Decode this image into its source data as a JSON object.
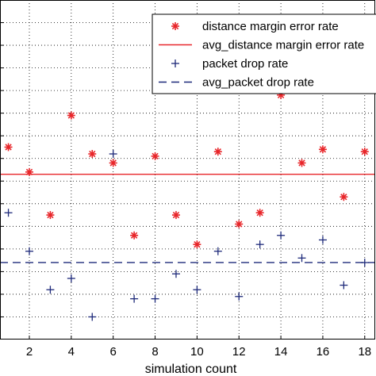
{
  "chart_data": {
    "type": "scatter",
    "title": "",
    "xlabel": "simulation count",
    "ylabel": "",
    "xlim": [
      0.6,
      18.5
    ],
    "ylim": [
      0,
      15
    ],
    "xticks": [
      2,
      4,
      6,
      8,
      10,
      12,
      14,
      16,
      18
    ],
    "grid": true,
    "legend_position": "top-right",
    "series": [
      {
        "name": "distance margin error rate",
        "marker": "asterisk",
        "color": "#e8262a",
        "x": [
          1,
          2,
          3,
          4,
          5,
          6,
          7,
          8,
          9,
          10,
          11,
          12,
          13,
          14,
          15,
          16,
          17,
          18
        ],
        "y": [
          8.5,
          7.4,
          5.5,
          9.9,
          8.2,
          7.8,
          4.6,
          8.1,
          5.5,
          4.2,
          8.3,
          5.1,
          5.6,
          10.8,
          7.8,
          8.4,
          6.3,
          8.3
        ]
      },
      {
        "name": "avg_distance margin error rate",
        "line": "solid",
        "color": "#e8262a",
        "y": 7.3
      },
      {
        "name": "packet drop rate",
        "marker": "plus",
        "color": "#1e2a7a",
        "x": [
          1,
          2,
          3,
          4,
          5,
          6,
          7,
          8,
          9,
          10,
          11,
          12,
          13,
          14,
          15,
          16,
          17,
          18
        ],
        "y": [
          5.6,
          3.9,
          2.2,
          2.7,
          1.0,
          8.2,
          1.8,
          1.8,
          2.9,
          2.2,
          3.9,
          1.9,
          4.2,
          4.6,
          3.6,
          4.4,
          2.4,
          3.4
        ]
      },
      {
        "name": "avg_packet drop rate",
        "line": "dashed",
        "color": "#1e2a7a",
        "y": 3.4
      }
    ]
  }
}
